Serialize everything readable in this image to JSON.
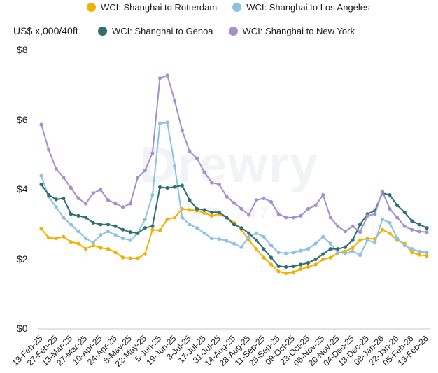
{
  "watermark": {
    "brand": "Drewry",
    "sub": "EST. 1970"
  },
  "chart_data": {
    "type": "line",
    "title": "",
    "ylabel": "US$ x,000/40ft",
    "ylim": [
      0,
      8
    ],
    "yticks": [
      {
        "value": 0,
        "label": "$0"
      },
      {
        "value": 2,
        "label": "$2"
      },
      {
        "value": 4,
        "label": "$4"
      },
      {
        "value": 6,
        "label": "$6"
      },
      {
        "value": 8,
        "label": "$8"
      }
    ],
    "grid": false,
    "legend_position": "top",
    "x": [
      "13-Feb-25",
      "20-Feb-25",
      "27-Feb-25",
      "06-Mar-25",
      "13-Mar-25",
      "20-Mar-25",
      "27-Mar-25",
      "03-Apr-25",
      "10-Apr-25",
      "17-Apr-25",
      "24-Apr-25",
      "01-May-25",
      "8-May-25",
      "15-May-25",
      "22-May-25",
      "29-May-25",
      "5-Jun-25",
      "12-Jun-25",
      "19-Jun-25",
      "26-Jun-25",
      "3-Jul-25",
      "10-Jul-25",
      "17-Jul-25",
      "24-Jul-25",
      "31-Jul-25",
      "07-Aug-25",
      "14-Aug-25",
      "21-Aug-25",
      "28-Aug-25",
      "04-Sep-25",
      "11-Sep-25",
      "18-Sep-25",
      "25-Sep-25",
      "02-Oct-25",
      "09-Oct-25",
      "16-Oct-25",
      "23-Oct-25",
      "30-Oct-25",
      "06-Nov-25",
      "13-Nov-25",
      "20-Nov-25",
      "27-Nov-25",
      "04-Dec-25",
      "11-Dec-25",
      "18-Dec-25",
      "25-Dec-25",
      "08-Jan-26",
      "15-Jan-26",
      "22-Jan-26",
      "29-Jan-26",
      "05-Feb-26",
      "12-Feb-26",
      "19-Feb-26"
    ],
    "xticks": [
      "13-Feb-25",
      "27-Feb-25",
      "13-Mar-25",
      "27-Mar-25",
      "10-Apr-25",
      "24-Apr-25",
      "8-May-25",
      "22-May-25",
      "5-Jun-25",
      "19-Jun-25",
      "3-Jul-25",
      "17-Jul-25",
      "31-Jul-25",
      "14-Aug-25",
      "28-Aug-25",
      "11-Sep-25",
      "25-Sep-25",
      "09-Oct-25",
      "23-Oct-25",
      "06-Nov-25",
      "20-Nov-25",
      "04-Dec-25",
      "18-Dec-25",
      "08-Jan-26",
      "22-Jan-26",
      "05-Feb-26",
      "19-Feb-26"
    ],
    "series": [
      {
        "name": "WCI: Shanghai to Rotterdam",
        "color": "#f2b100",
        "values": [
          2.88,
          2.62,
          2.6,
          2.65,
          2.5,
          2.45,
          2.3,
          2.4,
          2.33,
          2.3,
          2.2,
          2.05,
          2.03,
          2.03,
          2.15,
          2.85,
          2.83,
          3.15,
          3.2,
          3.45,
          3.42,
          3.4,
          3.33,
          3.25,
          3.3,
          3.2,
          3.05,
          2.85,
          2.55,
          2.3,
          2.05,
          1.85,
          1.65,
          1.6,
          1.63,
          1.72,
          1.78,
          1.85,
          2.0,
          2.05,
          2.18,
          2.23,
          2.33,
          2.55,
          2.6,
          2.58,
          2.85,
          2.75,
          2.55,
          2.45,
          2.2,
          2.13,
          2.1
        ]
      },
      {
        "name": "WCI: Shanghai to Los Angeles",
        "color": "#8cc1e3",
        "values": [
          4.4,
          3.8,
          3.5,
          3.2,
          3.0,
          2.8,
          2.6,
          2.48,
          2.7,
          2.8,
          2.7,
          2.6,
          2.55,
          2.75,
          3.15,
          3.85,
          5.9,
          5.93,
          4.68,
          3.2,
          3.0,
          2.9,
          2.75,
          2.6,
          2.58,
          2.53,
          2.45,
          2.35,
          2.65,
          2.75,
          2.65,
          2.4,
          2.2,
          2.17,
          2.2,
          2.25,
          2.3,
          2.45,
          2.65,
          2.45,
          2.2,
          2.17,
          2.23,
          2.12,
          2.55,
          2.48,
          3.15,
          3.05,
          2.6,
          2.4,
          2.3,
          2.22,
          2.2
        ]
      },
      {
        "name": "WCI: Shanghai to Genoa",
        "color": "#2d6f73",
        "values": [
          4.15,
          3.85,
          3.72,
          3.75,
          3.3,
          3.25,
          3.2,
          3.05,
          3.0,
          3.0,
          2.95,
          2.85,
          2.78,
          2.75,
          2.9,
          2.95,
          4.07,
          4.05,
          4.08,
          4.12,
          3.7,
          3.45,
          3.42,
          3.35,
          3.35,
          3.2,
          3.0,
          2.9,
          2.75,
          2.55,
          2.3,
          2.05,
          1.8,
          1.78,
          1.8,
          1.85,
          1.9,
          2.0,
          2.15,
          2.3,
          2.3,
          2.35,
          2.55,
          3.0,
          3.3,
          3.4,
          3.9,
          3.85,
          3.55,
          3.35,
          3.1,
          3.0,
          2.9
        ]
      },
      {
        "name": "WCI: Shanghai to New York",
        "color": "#a48fcf",
        "values": [
          5.87,
          5.15,
          4.6,
          4.35,
          4.05,
          3.75,
          3.6,
          3.9,
          4.0,
          3.7,
          3.6,
          3.5,
          3.6,
          4.35,
          4.55,
          5.05,
          7.2,
          7.28,
          6.55,
          5.7,
          5.1,
          4.9,
          4.5,
          4.2,
          4.15,
          3.8,
          3.62,
          3.45,
          3.28,
          3.7,
          3.75,
          3.65,
          3.3,
          3.2,
          3.2,
          3.25,
          3.45,
          3.55,
          3.85,
          3.2,
          2.95,
          2.8,
          2.95,
          2.78,
          3.25,
          3.3,
          3.95,
          3.45,
          3.2,
          2.95,
          2.85,
          2.8,
          2.78
        ]
      }
    ]
  }
}
